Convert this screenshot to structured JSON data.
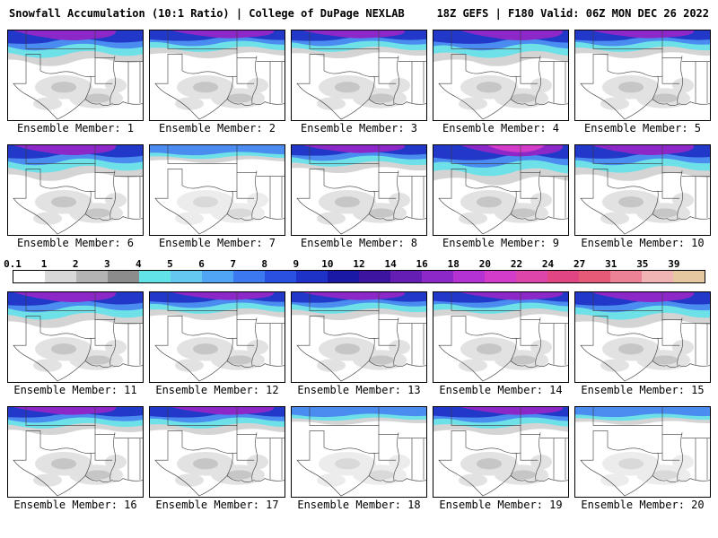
{
  "header": {
    "left": "Snowfall Accumulation (10:1 Ratio) | College of DuPage NEXLAB",
    "right": "18Z GEFS | F180 Valid: 06Z MON DEC 26 2022"
  },
  "colorbar": {
    "labels": [
      "0.1",
      "1",
      "2",
      "3",
      "4",
      "5",
      "6",
      "7",
      "8",
      "9",
      "10",
      "12",
      "14",
      "16",
      "18",
      "20",
      "22",
      "24",
      "27",
      "31",
      "35",
      "39"
    ],
    "colors": [
      "#ffffff",
      "#d8d8d8",
      "#b4b4b4",
      "#8c8c8c",
      "#62e3e8",
      "#64c8f0",
      "#50a5f5",
      "#3c78f0",
      "#2850e1",
      "#1e32c8",
      "#1919a5",
      "#3c14a0",
      "#641eb4",
      "#8c28c8",
      "#b432d2",
      "#d23cc8",
      "#dc46aa",
      "#e14682",
      "#e65a78",
      "#eb8296",
      "#f0b4b4",
      "#e6c8a0"
    ]
  },
  "members": [
    {
      "label": "Ensemble Member: 1",
      "intensity": "heavy"
    },
    {
      "label": "Ensemble Member: 2",
      "intensity": "moderate"
    },
    {
      "label": "Ensemble Member: 3",
      "intensity": "moderate"
    },
    {
      "label": "Ensemble Member: 4",
      "intensity": "heavy"
    },
    {
      "label": "Ensemble Member: 5",
      "intensity": "moderate"
    },
    {
      "label": "Ensemble Member: 6",
      "intensity": "heavy"
    },
    {
      "label": "Ensemble Member: 7",
      "intensity": "light"
    },
    {
      "label": "Ensemble Member: 8",
      "intensity": "moderate"
    },
    {
      "label": "Ensemble Member: 9",
      "intensity": "extreme"
    },
    {
      "label": "Ensemble Member: 10",
      "intensity": "heavy"
    },
    {
      "label": "Ensemble Member: 11",
      "intensity": "heavy"
    },
    {
      "label": "Ensemble Member: 12",
      "intensity": "moderate"
    },
    {
      "label": "Ensemble Member: 13",
      "intensity": "moderate"
    },
    {
      "label": "Ensemble Member: 14",
      "intensity": "moderate"
    },
    {
      "label": "Ensemble Member: 15",
      "intensity": "heavy"
    },
    {
      "label": "Ensemble Member: 16",
      "intensity": "moderate"
    },
    {
      "label": "Ensemble Member: 17",
      "intensity": "moderate"
    },
    {
      "label": "Ensemble Member: 18",
      "intensity": "light"
    },
    {
      "label": "Ensemble Member: 19",
      "intensity": "moderate"
    },
    {
      "label": "Ensemble Member: 20",
      "intensity": "light"
    }
  ],
  "palette": {
    "band-gray": "#d4d4d4",
    "gray-light": "#e2e2e2",
    "gray-mid": "#c6c6c6",
    "cyan": "#6ee0e8",
    "blue": "#4a8cf0",
    "deep-blue": "#2238c8",
    "purple": "#8c28c8",
    "magenta": "#d23cc8",
    "border-line": "#3a3a3a"
  }
}
